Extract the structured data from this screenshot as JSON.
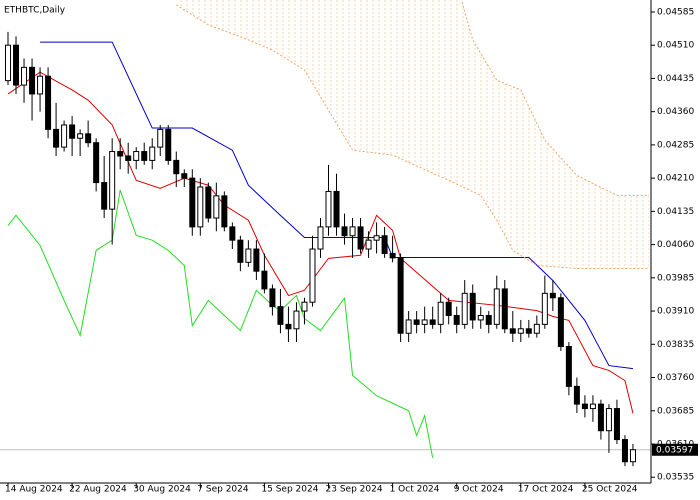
{
  "chart_data": {
    "type": "candlestick",
    "title": "ETHBTC,Daily",
    "xlim": [
      -1,
      80.25
    ],
    "ylim": [
      0.03522,
      0.04612
    ],
    "xticks": [
      {
        "value": 0,
        "label": "14 Aug 2024"
      },
      {
        "value": 8,
        "label": "22 Aug 2024"
      },
      {
        "value": 16,
        "label": "30 Aug 2024"
      },
      {
        "value": 24,
        "label": "7 Sep 2024"
      },
      {
        "value": 32,
        "label": "15 Sep 2024"
      },
      {
        "value": 40,
        "label": "23 Sep 2024"
      },
      {
        "value": 48,
        "label": "1 Oct 2024"
      },
      {
        "value": 56,
        "label": "9 Oct 2024"
      },
      {
        "value": 64,
        "label": "17 Oct 2024"
      },
      {
        "value": 72,
        "label": "25 Oct 2024"
      }
    ],
    "yticks": [
      0.04585,
      {
        "value": 0.0451,
        "label": "0.04510"
      },
      0.04435,
      {
        "value": 0.0436,
        "label": "0.04360"
      },
      0.04285,
      {
        "value": 0.0421,
        "label": "0.04210"
      },
      0.04135,
      {
        "value": 0.0406,
        "label": "0.04060"
      },
      0.03985,
      {
        "value": 0.0391,
        "label": "0.03910"
      },
      0.03835,
      {
        "value": 0.0376,
        "label": "0.03760"
      },
      0.03685,
      {
        "value": 0.0361,
        "label": "0.03610"
      },
      0.03535
    ],
    "last_price": 0.03597,
    "x": [
      0,
      1,
      2,
      3,
      4,
      5,
      6,
      7,
      8,
      9,
      10,
      11,
      12,
      13,
      14,
      15,
      16,
      17,
      18,
      19,
      20,
      21,
      22,
      23,
      24,
      25,
      26,
      27,
      28,
      29,
      30,
      31,
      32,
      33,
      34,
      35,
      36,
      37,
      38,
      39,
      40,
      41,
      42,
      43,
      44,
      45,
      46,
      47,
      48,
      49,
      50,
      51,
      52,
      53,
      54,
      55,
      56,
      57,
      58,
      59,
      60,
      61,
      62,
      63,
      64,
      65,
      66,
      67,
      68,
      69,
      70,
      71,
      72,
      73,
      74,
      75,
      76,
      77,
      78
    ],
    "open": [
      0.0443,
      0.0451,
      0.0442,
      0.0446,
      0.044,
      0.0444,
      0.0432,
      0.0428,
      0.0433,
      0.043,
      0.0431,
      0.0429,
      0.042,
      0.0414,
      0.0427,
      0.0426,
      0.0425,
      0.0427,
      0.0425,
      0.0428,
      0.0432,
      0.0425,
      0.0422,
      0.0421,
      0.041,
      0.0419,
      0.0412,
      0.0417,
      0.041,
      0.0407,
      0.0402,
      0.0405,
      0.04,
      0.0396,
      0.0392,
      0.0388,
      0.0387,
      0.0391,
      0.0393,
      0.0405,
      0.041,
      0.0418,
      0.041,
      0.0408,
      0.041,
      0.0405,
      0.0407,
      0.0408,
      0.0404,
      0.0403,
      0.0386,
      0.0389,
      0.0388,
      0.0389,
      0.0388,
      0.0393,
      0.039,
      0.0388,
      0.0395,
      0.0389,
      0.039,
      0.0388,
      0.0396,
      0.0387,
      0.0386,
      0.0387,
      0.0386,
      0.0388,
      0.0395,
      0.0394,
      0.0383,
      0.0374,
      0.037,
      0.0369,
      0.037,
      0.0364,
      0.0369,
      0.0362,
      0.0357
    ],
    "high": [
      0.0454,
      0.0453,
      0.0448,
      0.0448,
      0.0446,
      0.0446,
      0.0438,
      0.0434,
      0.0435,
      0.0432,
      0.0434,
      0.043,
      0.0426,
      0.043,
      0.043,
      0.0429,
      0.0428,
      0.0429,
      0.043,
      0.0433,
      0.0433,
      0.0427,
      0.0423,
      0.0423,
      0.0421,
      0.042,
      0.042,
      0.0418,
      0.0411,
      0.0408,
      0.0407,
      0.0407,
      0.0404,
      0.0397,
      0.0396,
      0.0392,
      0.0393,
      0.0394,
      0.0408,
      0.0412,
      0.0424,
      0.0422,
      0.0413,
      0.0412,
      0.0412,
      0.0409,
      0.0411,
      0.041,
      0.0408,
      0.0404,
      0.0391,
      0.0391,
      0.0392,
      0.0392,
      0.0395,
      0.0394,
      0.0392,
      0.0398,
      0.0397,
      0.0392,
      0.0391,
      0.0399,
      0.0398,
      0.0391,
      0.0389,
      0.0389,
      0.039,
      0.0399,
      0.0398,
      0.0395,
      0.0384,
      0.0376,
      0.0372,
      0.0372,
      0.0371,
      0.037,
      0.0371,
      0.0363,
      0.0361
    ],
    "low": [
      0.0442,
      0.044,
      0.0438,
      0.0434,
      0.0436,
      0.043,
      0.0426,
      0.0427,
      0.0426,
      0.0426,
      0.0428,
      0.0418,
      0.0412,
      0.0406,
      0.0423,
      0.0422,
      0.0423,
      0.0424,
      0.0423,
      0.0426,
      0.0424,
      0.0419,
      0.0419,
      0.0408,
      0.0408,
      0.0411,
      0.0409,
      0.0409,
      0.0405,
      0.04,
      0.0401,
      0.0398,
      0.0395,
      0.039,
      0.0386,
      0.0384,
      0.0384,
      0.0388,
      0.0392,
      0.0403,
      0.0408,
      0.0408,
      0.0406,
      0.0403,
      0.0404,
      0.0403,
      0.0404,
      0.0403,
      0.0402,
      0.0384,
      0.0384,
      0.0386,
      0.0386,
      0.0387,
      0.0386,
      0.0388,
      0.0386,
      0.0387,
      0.0387,
      0.0387,
      0.0386,
      0.0387,
      0.0386,
      0.0384,
      0.0384,
      0.0385,
      0.0385,
      0.0387,
      0.0391,
      0.0382,
      0.0372,
      0.0368,
      0.0367,
      0.0366,
      0.0362,
      0.0359,
      0.0361,
      0.0356,
      0.0356
    ],
    "close": [
      0.0451,
      0.0442,
      0.0446,
      0.044,
      0.0444,
      0.0432,
      0.0428,
      0.0433,
      0.043,
      0.0431,
      0.0429,
      0.042,
      0.0414,
      0.0427,
      0.0426,
      0.0425,
      0.0427,
      0.0425,
      0.0428,
      0.0432,
      0.0425,
      0.0422,
      0.0421,
      0.041,
      0.0419,
      0.0412,
      0.0417,
      0.041,
      0.0407,
      0.0402,
      0.0405,
      0.04,
      0.0396,
      0.0392,
      0.0388,
      0.0387,
      0.0391,
      0.0393,
      0.0405,
      0.041,
      0.0418,
      0.041,
      0.0408,
      0.041,
      0.0405,
      0.0407,
      0.0408,
      0.0404,
      0.0403,
      0.0386,
      0.0389,
      0.0388,
      0.0389,
      0.0388,
      0.0393,
      0.039,
      0.0388,
      0.0395,
      0.0389,
      0.039,
      0.0388,
      0.0396,
      0.0387,
      0.0386,
      0.0387,
      0.0386,
      0.0388,
      0.0395,
      0.0394,
      0.0383,
      0.0374,
      0.037,
      0.0369,
      0.037,
      0.0364,
      0.0369,
      0.0362,
      0.0357,
      0.03597
    ],
    "series": [
      {
        "color": "#0000c8",
        "x": [
          4,
          13,
          18,
          23,
          28,
          30,
          34,
          37,
          47,
          48,
          65,
          68,
          72,
          75,
          78
        ],
        "values": [
          0.04517,
          0.04517,
          0.04323,
          0.04323,
          0.04273,
          0.04194,
          0.04126,
          0.04076,
          0.04076,
          0.04031,
          0.04031,
          0.03979,
          0.03889,
          0.03787,
          0.0378
        ]
      },
      {
        "color": "#e00000",
        "x": [
          0,
          4,
          8,
          10,
          13,
          16,
          19,
          22,
          25,
          27,
          30,
          32,
          35,
          37,
          40,
          44,
          46,
          48,
          49,
          55,
          61,
          66,
          68,
          70,
          73,
          75,
          77,
          78
        ],
        "values": [
          0.044,
          0.04449,
          0.04409,
          0.04386,
          0.0433,
          0.04205,
          0.04187,
          0.0421,
          0.04194,
          0.04149,
          0.04115,
          0.04036,
          0.03945,
          0.03957,
          0.04029,
          0.04036,
          0.04126,
          0.04092,
          0.04029,
          0.03934,
          0.03923,
          0.03911,
          0.03898,
          0.03889,
          0.03787,
          0.03776,
          0.03753,
          0.03679
        ]
      },
      {
        "color": "#22dd22",
        "x": [
          0,
          1,
          4,
          7,
          9,
          11,
          13,
          14,
          16,
          18,
          20,
          22,
          23,
          25,
          27,
          29,
          31,
          33,
          34,
          36,
          37,
          39,
          42,
          43,
          46,
          50,
          51,
          52,
          53
        ],
        "values": [
          0.04103,
          0.04126,
          0.04058,
          0.03934,
          0.03855,
          0.04047,
          0.0407,
          0.04183,
          0.04081,
          0.0407,
          0.04047,
          0.04013,
          0.03877,
          0.03934,
          0.039,
          0.03866,
          0.03957,
          0.03923,
          0.03911,
          0.03945,
          0.03893,
          0.03866,
          0.03939,
          0.03765,
          0.03719,
          0.03685,
          0.03629,
          0.03674,
          0.03579
        ]
      },
      {
        "color": "#f4a460",
        "dashed": true,
        "x": [
          21,
          25,
          30,
          33,
          37,
          40,
          43,
          48,
          55,
          59,
          61,
          63,
          66,
          71,
          80
        ],
        "values": [
          0.04601,
          0.04556,
          0.04522,
          0.04499,
          0.04454,
          0.04363,
          0.04273,
          0.04262,
          0.04205,
          0.04171,
          0.04115,
          0.04047,
          0.04013,
          0.04006,
          0.04006
        ]
      },
      {
        "color": "#f4a460",
        "dashed": true,
        "x": [
          21,
          56,
          58,
          61,
          64,
          67,
          71,
          76,
          80
        ],
        "values": [
          0.0465,
          0.0465,
          0.04522,
          0.04431,
          0.04409,
          0.04296,
          0.04216,
          0.04171,
          0.04171
        ]
      }
    ],
    "cloud_color": "#f4a460"
  }
}
